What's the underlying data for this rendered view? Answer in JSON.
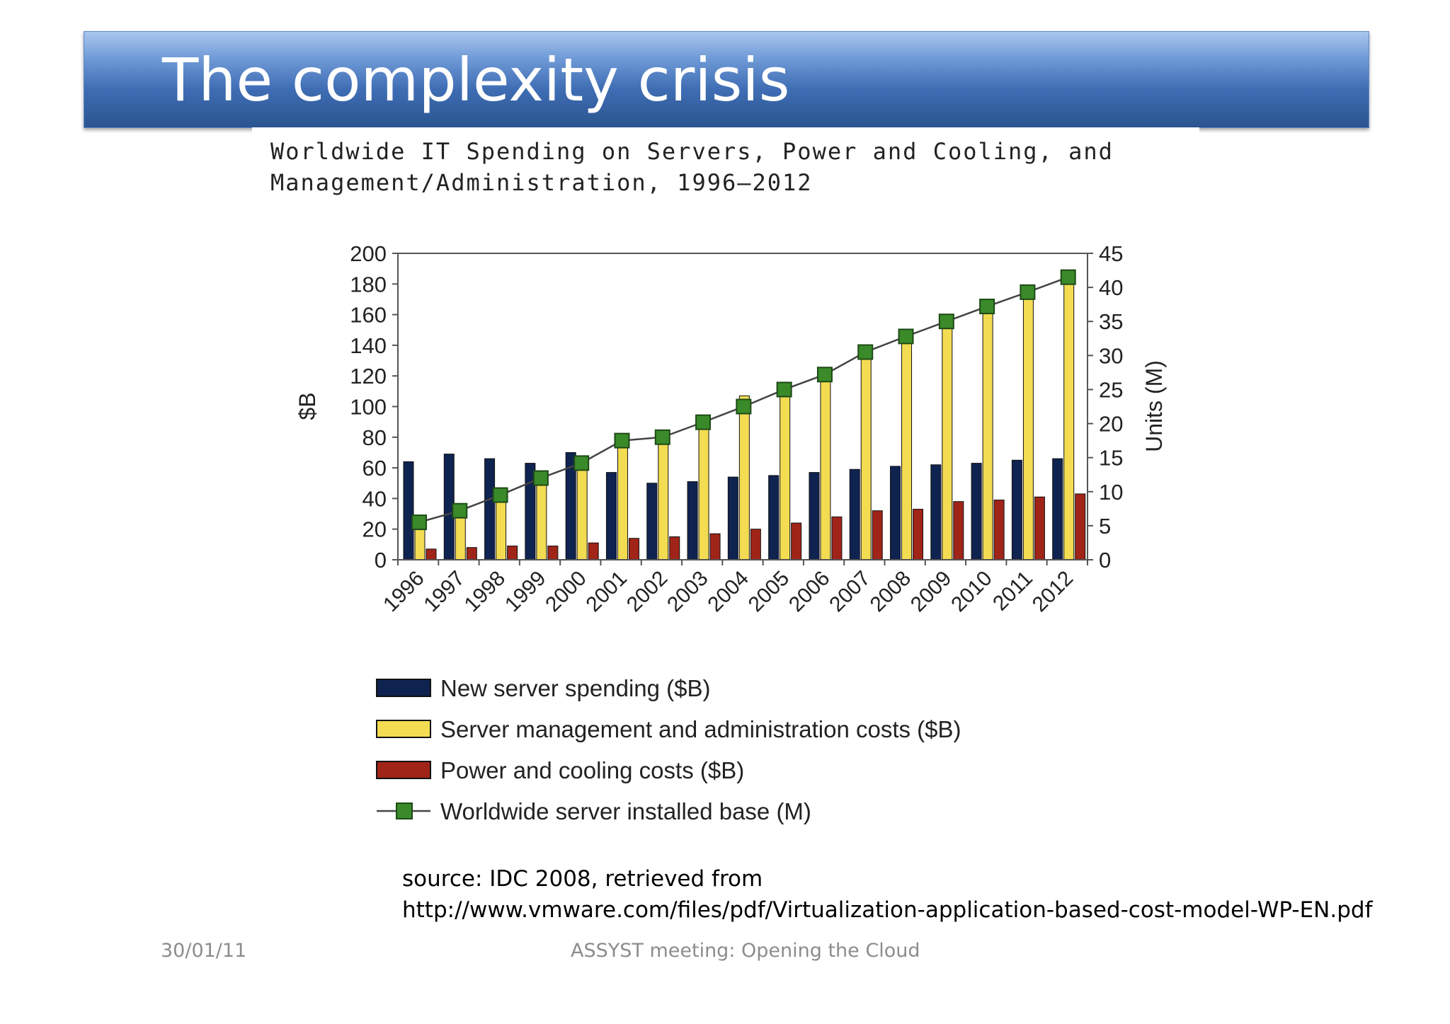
{
  "slide": {
    "title": "The complexity crisis",
    "source_line1": "source: IDC 2008, retrieved from",
    "source_line2": "http://www.vmware.com/files/pdf/Virtualization-application-based-cost-model-WP-EN.pdf",
    "footer_date": "30/01/11",
    "footer_center": "ASSYST meeting: Opening the Cloud"
  },
  "chart_data": {
    "type": "bar",
    "title_line1": "Worldwide IT Spending on Servers, Power and Cooling, and",
    "title_line2": "Management/Administration, 1996–2012",
    "categories": [
      "1996",
      "1997",
      "1998",
      "1999",
      "2000",
      "2001",
      "2002",
      "2003",
      "2004",
      "2005",
      "2006",
      "2007",
      "2008",
      "2009",
      "2010",
      "2011",
      "2012"
    ],
    "ylabel": "$B",
    "y2label": "Units (M)",
    "ylim": [
      0,
      200
    ],
    "y2lim": [
      0,
      45
    ],
    "yticks": [
      0,
      20,
      40,
      60,
      80,
      100,
      120,
      140,
      160,
      180,
      200
    ],
    "y2ticks": [
      0,
      5,
      10,
      15,
      20,
      25,
      30,
      35,
      40,
      45
    ],
    "grid": false,
    "legend_position": "bottom",
    "series": [
      {
        "name": "New server spending ($B)",
        "type": "bar",
        "axis": "left",
        "color": "#0f2350",
        "values": [
          64,
          69,
          66,
          63,
          70,
          57,
          50,
          51,
          54,
          55,
          57,
          59,
          61,
          62,
          63,
          65,
          66
        ]
      },
      {
        "name": "Server management and administration costs ($B)",
        "type": "bar",
        "axis": "left",
        "color": "#f3dc52",
        "values": [
          25,
          31,
          40,
          52,
          62,
          77,
          79,
          88,
          107,
          115,
          121,
          132,
          145,
          154,
          163,
          172,
          184
        ]
      },
      {
        "name": "Power and cooling costs ($B)",
        "type": "bar",
        "axis": "left",
        "color": "#a02418",
        "values": [
          7,
          8,
          9,
          9,
          11,
          14,
          15,
          17,
          20,
          24,
          28,
          32,
          33,
          38,
          39,
          41,
          43
        ]
      },
      {
        "name": "Worldwide server installed base (M)",
        "type": "line",
        "axis": "right",
        "color": "#3a8a2a",
        "values": [
          5.5,
          7.2,
          9.5,
          12.0,
          14.2,
          17.5,
          18.0,
          20.2,
          22.5,
          25.0,
          27.2,
          30.5,
          32.8,
          35.0,
          37.2,
          39.3,
          41.5
        ]
      }
    ]
  }
}
